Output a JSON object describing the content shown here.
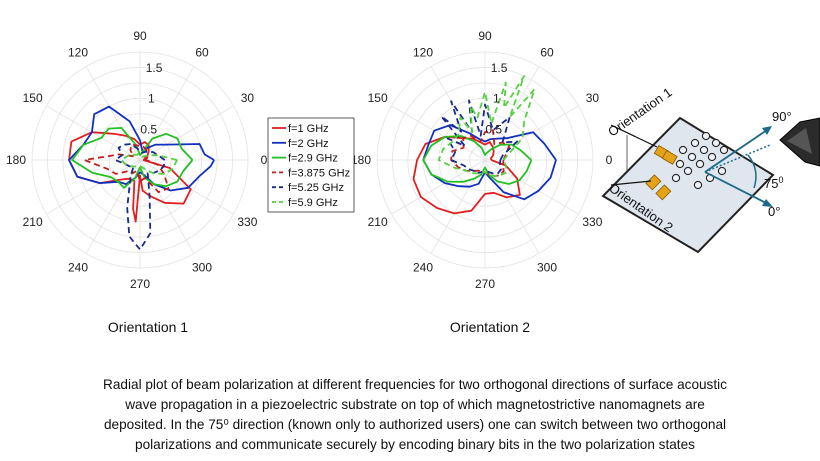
{
  "chart_data": [
    {
      "type": "polar-line",
      "title": "Orientation 1",
      "theta_ticks": [
        "0",
        "30",
        "60",
        "90",
        "120",
        "150",
        "180",
        "210",
        "240",
        "270",
        "300",
        "330"
      ],
      "r_ticks": [
        "0.5",
        "1",
        "1.5"
      ],
      "rlim": [
        0,
        1.75
      ],
      "series": [
        {
          "name": "f=1 GHz",
          "color": "#e02020",
          "dash": "solid",
          "theta": [
            0,
            15,
            30,
            45,
            60,
            75,
            90,
            105,
            120,
            135,
            150,
            165,
            180,
            195,
            210,
            225,
            240,
            255,
            262,
            266,
            270,
            275,
            285,
            300,
            315,
            330,
            345
          ],
          "r": [
            0.05,
            0.12,
            0.14,
            0.2,
            0.28,
            0.3,
            0.25,
            0.35,
            0.45,
            0.6,
            0.9,
            1.15,
            1.15,
            1.05,
            0.75,
            0.45,
            0.35,
            0.35,
            0.8,
            1.0,
            0.25,
            0.5,
            0.6,
            0.8,
            1.0,
            0.95,
            0.5
          ]
        },
        {
          "name": "f=2 GHz",
          "color": "#1030c0",
          "dash": "solid",
          "theta": [
            0,
            5,
            15,
            30,
            45,
            60,
            75,
            90,
            105,
            120,
            135,
            150,
            165,
            180,
            195,
            210,
            225,
            240,
            255,
            270,
            285,
            300,
            315,
            330,
            345,
            355
          ],
          "r": [
            1.2,
            1.05,
            1.0,
            0.5,
            0.35,
            0.22,
            0.15,
            0.32,
            0.65,
            1.0,
            1.05,
            0.9,
            0.95,
            1.15,
            1.05,
            0.75,
            0.5,
            0.45,
            0.3,
            0.2,
            0.25,
            0.45,
            0.7,
            0.9,
            1.0,
            1.15
          ]
        },
        {
          "name": "f=2.9 GHz",
          "color": "#22c022",
          "dash": "solid",
          "theta": [
            0,
            15,
            30,
            45,
            60,
            75,
            90,
            105,
            120,
            135,
            150,
            165,
            180,
            195,
            210,
            225,
            240,
            255,
            270,
            285,
            300,
            315,
            330,
            345
          ],
          "r": [
            0.85,
            0.7,
            0.7,
            0.6,
            0.4,
            0.12,
            0.08,
            0.25,
            0.6,
            0.72,
            0.72,
            0.95,
            1.1,
            0.8,
            0.55,
            0.5,
            0.52,
            0.3,
            0.12,
            0.3,
            0.45,
            0.6,
            0.7,
            0.72
          ]
        },
        {
          "name": "f=3.875 GHz",
          "color": "#c02020",
          "dash": "dash",
          "theta": [
            0,
            15,
            30,
            45,
            60,
            75,
            90,
            105,
            120,
            135,
            150,
            165,
            180,
            195,
            210,
            225,
            240,
            255,
            270,
            285,
            300,
            315,
            330,
            345
          ],
          "r": [
            0.1,
            0.08,
            0.12,
            0.15,
            0.2,
            0.22,
            0.22,
            0.25,
            0.28,
            0.22,
            0.12,
            0.35,
            0.9,
            0.55,
            0.45,
            0.25,
            0.25,
            0.18,
            0.35,
            0.3,
            0.6,
            0.65,
            0.45,
            0.3
          ]
        },
        {
          "name": "f=5.25 GHz",
          "color": "#1a2a8c",
          "dash": "dash",
          "theta": [
            0,
            15,
            30,
            45,
            60,
            75,
            90,
            105,
            120,
            135,
            150,
            165,
            180,
            195,
            210,
            225,
            240,
            255,
            262,
            270,
            278,
            285,
            300,
            315,
            330,
            345
          ],
          "r": [
            0.4,
            0.3,
            0.25,
            0.2,
            0.15,
            0.12,
            0.15,
            0.2,
            0.3,
            0.35,
            0.4,
            0.3,
            0.4,
            0.25,
            0.2,
            0.15,
            0.3,
            0.8,
            1.25,
            1.45,
            1.2,
            0.6,
            0.25,
            0.3,
            0.35,
            0.4
          ]
        },
        {
          "name": "f=5.9 GHz",
          "color": "#55d040",
          "dash": "dash",
          "theta": [
            0,
            15,
            30,
            45,
            60,
            75,
            90,
            105,
            120,
            135,
            150,
            165,
            180,
            195,
            210,
            225,
            240,
            255,
            270,
            285,
            300,
            315,
            330,
            345
          ],
          "r": [
            0.6,
            0.3,
            0.15,
            0.08,
            0.06,
            0.06,
            0.08,
            0.1,
            0.1,
            0.12,
            0.18,
            0.22,
            0.3,
            0.25,
            0.2,
            0.15,
            0.12,
            0.1,
            0.1,
            0.12,
            0.18,
            0.3,
            0.45,
            0.55
          ]
        }
      ]
    },
    {
      "type": "polar-line",
      "title": "Orientation 2",
      "theta_ticks": [
        "0",
        "30",
        "60",
        "90",
        "120",
        "150",
        "180",
        "210",
        "240",
        "270",
        "300",
        "330"
      ],
      "r_ticks": [
        "0.5",
        "1",
        "1.5"
      ],
      "rlim": [
        0,
        1.75
      ],
      "series": [
        {
          "name": "f=1 GHz",
          "color": "#e02020",
          "dash": "solid",
          "theta": [
            0,
            15,
            30,
            45,
            60,
            75,
            90,
            105,
            120,
            135,
            150,
            165,
            180,
            195,
            210,
            225,
            240,
            255,
            270,
            285,
            300,
            315,
            330,
            345
          ],
          "r": [
            0.1,
            0.1,
            0.15,
            0.2,
            0.25,
            0.3,
            0.25,
            0.3,
            0.4,
            0.5,
            0.75,
            1.0,
            1.1,
            1.2,
            1.2,
            1.1,
            1.0,
            0.85,
            0.55,
            0.55,
            0.7,
            0.8,
            0.6,
            0.35
          ]
        },
        {
          "name": "f=2 GHz",
          "color": "#1030c0",
          "dash": "solid",
          "theta": [
            0,
            15,
            30,
            45,
            60,
            75,
            90,
            105,
            120,
            135,
            150,
            165,
            180,
            195,
            210,
            225,
            240,
            255,
            270,
            285,
            300,
            315,
            330,
            345
          ],
          "r": [
            1.15,
            1.0,
            0.9,
            0.5,
            0.4,
            0.35,
            0.3,
            0.35,
            0.5,
            0.8,
            0.95,
            0.95,
            1.0,
            0.9,
            0.75,
            0.6,
            0.5,
            0.4,
            0.2,
            0.3,
            0.6,
            0.9,
            1.0,
            1.1
          ]
        },
        {
          "name": "f=2.9 GHz",
          "color": "#22c022",
          "dash": "solid",
          "theta": [
            0,
            15,
            30,
            45,
            60,
            75,
            90,
            105,
            120,
            135,
            150,
            165,
            180,
            195,
            210,
            225,
            240,
            255,
            270,
            285,
            300,
            315,
            330,
            345
          ],
          "r": [
            0.75,
            0.6,
            0.5,
            0.35,
            0.2,
            0.12,
            0.08,
            0.2,
            0.35,
            0.55,
            0.75,
            0.9,
            1.0,
            0.9,
            0.7,
            0.5,
            0.35,
            0.25,
            0.12,
            0.25,
            0.4,
            0.55,
            0.65,
            0.7
          ]
        },
        {
          "name": "f=3.875 GHz",
          "color": "#c02020",
          "dash": "dash",
          "theta": [
            0,
            15,
            30,
            45,
            60,
            75,
            90,
            105,
            120,
            135,
            150,
            165,
            180,
            195,
            210,
            225,
            240,
            255,
            270,
            285,
            300,
            315,
            330,
            345
          ],
          "r": [
            0.3,
            0.35,
            0.45,
            0.4,
            0.3,
            0.5,
            0.45,
            0.3,
            0.45,
            0.5,
            0.4,
            0.55,
            0.55,
            0.45,
            0.35,
            0.25,
            0.2,
            0.2,
            0.2,
            0.25,
            0.3,
            0.35,
            0.35,
            0.3
          ]
        },
        {
          "name": "f=5.25 GHz",
          "color": "#1a2a8c",
          "dash": "dash",
          "theta": [
            0,
            15,
            30,
            45,
            60,
            75,
            90,
            100,
            105,
            115,
            120,
            130,
            135,
            145,
            150,
            165,
            180,
            195,
            210,
            225,
            240,
            255,
            270,
            285,
            300,
            315,
            330,
            345
          ],
          "r": [
            0.25,
            0.3,
            0.6,
            0.4,
            0.8,
            0.5,
            0.9,
            0.4,
            1.0,
            0.5,
            1.1,
            0.6,
            1.0,
            0.4,
            0.7,
            0.5,
            0.55,
            0.35,
            0.3,
            0.25,
            0.25,
            0.2,
            0.2,
            0.2,
            0.25,
            0.3,
            0.3,
            0.25
          ]
        },
        {
          "name": "f=5.9 GHz",
          "color": "#55d040",
          "dash": "dash",
          "theta": [
            0,
            15,
            30,
            45,
            55,
            60,
            65,
            70,
            75,
            80,
            90,
            100,
            105,
            115,
            120,
            135,
            150,
            165,
            180,
            195,
            210,
            225,
            240,
            255,
            270,
            285,
            300,
            315,
            330,
            345
          ],
          "r": [
            0.3,
            0.4,
            0.7,
            0.9,
            1.4,
            0.8,
            1.5,
            0.9,
            1.3,
            0.6,
            1.1,
            0.7,
            0.9,
            0.5,
            0.8,
            0.6,
            0.6,
            0.7,
            0.75,
            0.5,
            0.35,
            0.3,
            0.25,
            0.2,
            0.2,
            0.25,
            0.3,
            0.35,
            0.4,
            0.35
          ]
        }
      ]
    }
  ],
  "legend": {
    "entries": [
      "f=1 GHz",
      "f=2 GHz",
      "f=2.9 GHz",
      "f=3.875 GHz",
      "f=5.25 GHz",
      "f=5.9 GHz"
    ]
  },
  "diagram": {
    "label_orientation_1": "Orientation 1",
    "label_orientation_2": "Orientation 2",
    "angle_90": "90°",
    "angle_75": "75",
    "angle_75_sup": "0",
    "angle_0": "0°"
  },
  "caption": [
    "Radial plot of beam polarization at different frequencies for two orthogonal directions of surface acoustic",
    "wave propagation in a piezoelectric substrate on top of which magnetostrictive nanomagnets are",
    "deposited. In the 75⁰ direction (known only to authorized users) one can switch between two orthogonal",
    "polarizations and communicate securely by encoding binary bits in the two polarization states"
  ]
}
